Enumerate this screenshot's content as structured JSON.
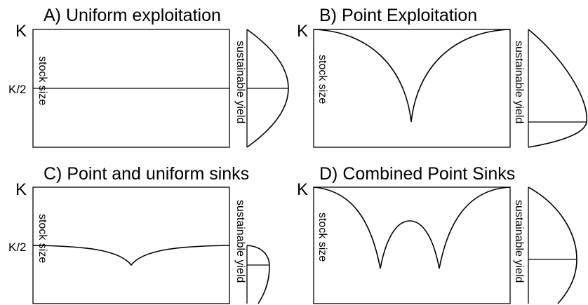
{
  "panels": [
    {
      "id": "a",
      "title": "A) Uniform exploitation",
      "k_label": "K",
      "k_half_label": "K/2",
      "stock_label": "stock size",
      "yield_label": "sustainable yield"
    },
    {
      "id": "b",
      "title": "B) Point Exploitation",
      "k_label": "K",
      "k_half_label": "",
      "stock_label": "stock size",
      "yield_label": "sustainable yield"
    },
    {
      "id": "c",
      "title": "C) Point and uniform sinks",
      "k_label": "K",
      "k_half_label": "K/2",
      "stock_label": "stock size",
      "yield_label": "sustainable yield"
    },
    {
      "id": "d",
      "title": "D) Combined Point Sinks",
      "k_label": "K",
      "k_half_label": "",
      "stock_label": "stock size",
      "yield_label": "sustainable yield"
    }
  ]
}
